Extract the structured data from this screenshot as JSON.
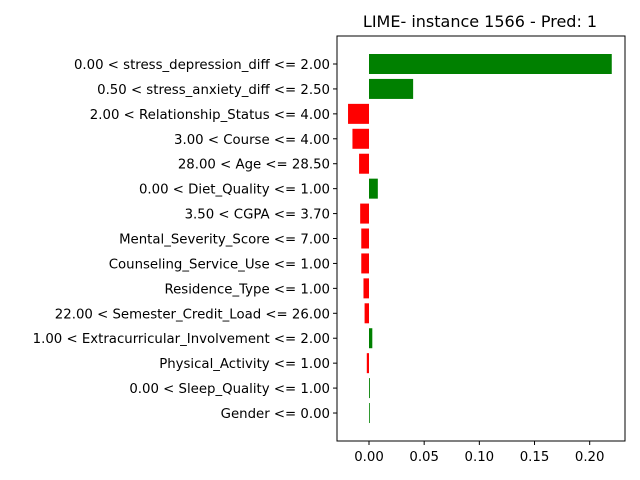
{
  "chart_data": {
    "type": "bar",
    "orientation": "horizontal",
    "title": "LIME- instance 1566 - Pred: 1",
    "xlabel": "",
    "ylabel": "",
    "xlim": [
      -0.029,
      0.232
    ],
    "xticks": [
      0.0,
      0.05,
      0.1,
      0.15,
      0.2
    ],
    "xtick_labels": [
      "0.00",
      "0.05",
      "0.10",
      "0.15",
      "0.20"
    ],
    "grid": false,
    "positive_color": "#008000",
    "negative_color": "#ff0000",
    "categories": [
      "0.00 < stress_depression_diff <= 2.00",
      "0.50 < stress_anxiety_diff <= 2.50",
      "2.00 < Relationship_Status <= 4.00",
      "3.00 < Course <= 4.00",
      "28.00 < Age <= 28.50",
      "0.00 < Diet_Quality <= 1.00",
      "3.50 < CGPA <= 3.70",
      "Mental_Severity_Score <= 7.00",
      "Counseling_Service_Use <= 1.00",
      "Residence_Type <= 1.00",
      "22.00 < Semester_Credit_Load <= 26.00",
      "1.00 < Extracurricular_Involvement <= 2.00",
      "Physical_Activity <= 1.00",
      "0.00 < Sleep_Quality <= 1.00",
      "Gender <= 0.00"
    ],
    "values": [
      0.22,
      0.04,
      -0.019,
      -0.015,
      -0.009,
      0.008,
      -0.008,
      -0.007,
      -0.007,
      -0.005,
      -0.004,
      0.003,
      -0.002,
      0.0008,
      0.0005
    ]
  }
}
